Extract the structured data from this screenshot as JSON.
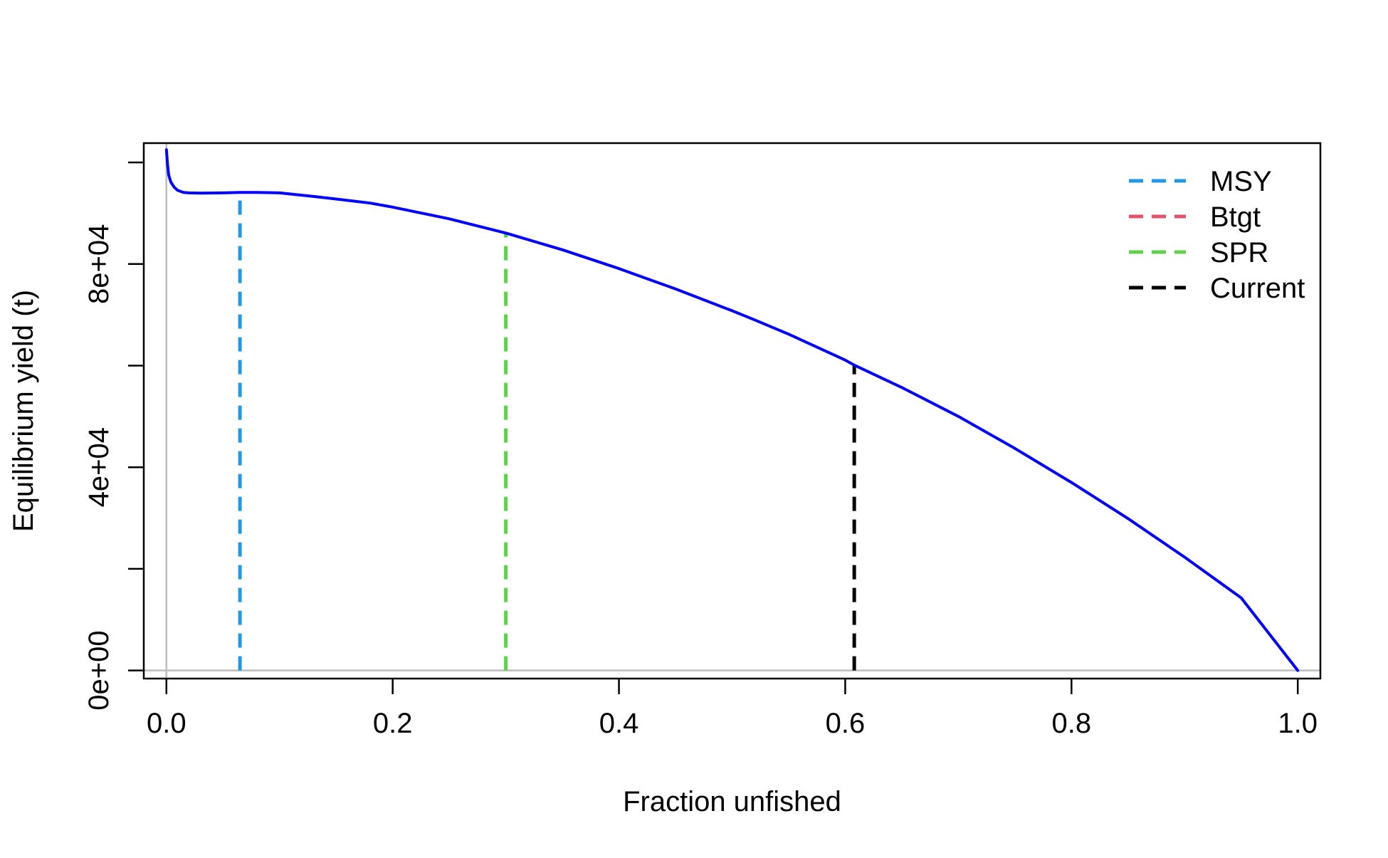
{
  "chart_data": {
    "type": "line",
    "title": "",
    "xlabel": "Fraction unfished",
    "ylabel": "Equilibrium yield (t)",
    "xlim": [
      -0.02,
      1.02
    ],
    "ylim": [
      -1600,
      103800
    ],
    "x_ticks": [
      0.0,
      0.2,
      0.4,
      0.6,
      0.8,
      1.0
    ],
    "x_tick_labels": [
      "0.0",
      "0.2",
      "0.4",
      "0.6",
      "0.8",
      "1.0"
    ],
    "y_ticks": [
      0,
      20000,
      40000,
      60000,
      80000,
      100000
    ],
    "y_tick_labels": [
      "0e+00",
      "",
      "4e+04",
      "",
      "8e+04",
      ""
    ],
    "grid": false,
    "reference_lines": {
      "x": 0,
      "y": 0,
      "color": "#BEBEBE"
    },
    "series": [
      {
        "color": "#0000FF",
        "x": [
          0.0,
          0.001,
          0.002,
          0.004,
          0.007,
          0.01,
          0.015,
          0.02,
          0.03,
          0.05,
          0.065,
          0.08,
          0.1,
          0.13,
          0.15,
          0.18,
          0.2,
          0.25,
          0.3,
          0.35,
          0.4,
          0.43,
          0.45,
          0.5,
          0.52,
          0.55,
          0.6,
          0.608,
          0.65,
          0.7,
          0.75,
          0.8,
          0.85,
          0.9,
          0.95,
          1.0
        ],
        "y": [
          102500,
          99500,
          97500,
          96100,
          95100,
          94500,
          94100,
          94000,
          93950,
          94000,
          94100,
          94100,
          94000,
          93300,
          92800,
          92000,
          91200,
          88900,
          86100,
          82800,
          79100,
          76700,
          75100,
          70800,
          69000,
          66200,
          61100,
          60100,
          55700,
          50000,
          43700,
          37000,
          29900,
          22300,
          14300,
          0
        ]
      }
    ],
    "vertical_markers": [
      {
        "name": "MSY",
        "x": 0.065,
        "y_top": 94100,
        "color": "#2297E6"
      },
      {
        "name": "Btgt",
        "x": null,
        "y_top": null,
        "color": "#DF536B"
      },
      {
        "name": "SPR",
        "x": 0.3,
        "y_top": 86100,
        "color": "#61D04F"
      },
      {
        "name": "Current",
        "x": 0.608,
        "y_top": 60100,
        "color": "#000000"
      }
    ],
    "legend": {
      "position": "top-right",
      "line_style": "dashed",
      "entries": [
        {
          "label": "MSY",
          "color": "#2297E6"
        },
        {
          "label": "Btgt",
          "color": "#DF536B"
        },
        {
          "label": "SPR",
          "color": "#61D04F"
        },
        {
          "label": "Current",
          "color": "#000000"
        }
      ]
    }
  }
}
